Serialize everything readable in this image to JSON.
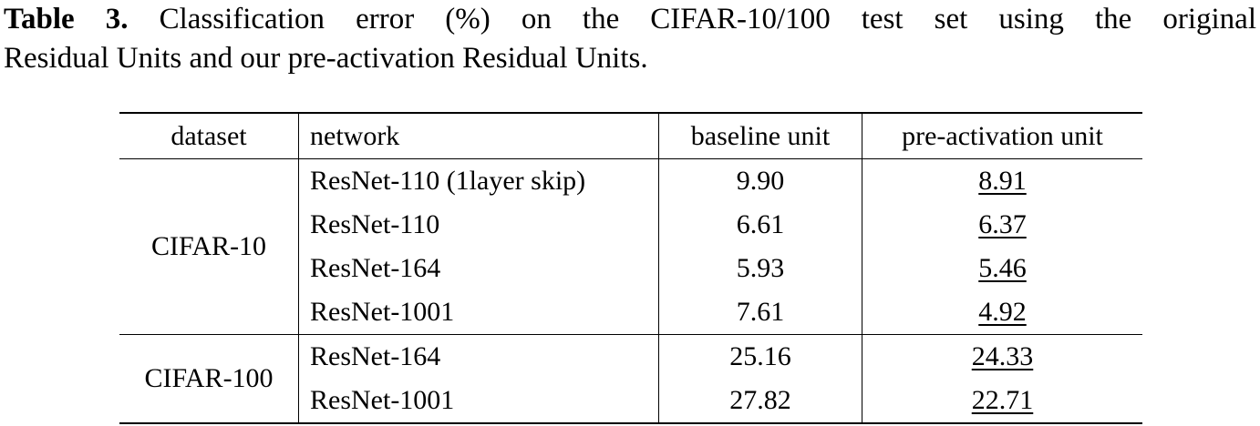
{
  "caption": {
    "label": "Table 3.",
    "line1": "Classification error (%) on the CIFAR-10/100 test set using the original",
    "line2": "Residual Units and our pre-activation Residual Units."
  },
  "table": {
    "headers": {
      "dataset": "dataset",
      "network": "network",
      "baseline": "baseline unit",
      "preact": "pre-activation unit"
    },
    "groups": [
      {
        "dataset": "CIFAR-10",
        "rows": [
          {
            "network": "ResNet-110 (1layer skip)",
            "baseline": "9.90",
            "preact": "8.91"
          },
          {
            "network": "ResNet-110",
            "baseline": "6.61",
            "preact": "6.37"
          },
          {
            "network": "ResNet-164",
            "baseline": "5.93",
            "preact": "5.46"
          },
          {
            "network": "ResNet-1001",
            "baseline": "7.61",
            "preact": "4.92"
          }
        ]
      },
      {
        "dataset": "CIFAR-100",
        "rows": [
          {
            "network": "ResNet-164",
            "baseline": "25.16",
            "preact": "24.33"
          },
          {
            "network": "ResNet-1001",
            "baseline": "27.82",
            "preact": "22.71"
          }
        ]
      }
    ]
  }
}
